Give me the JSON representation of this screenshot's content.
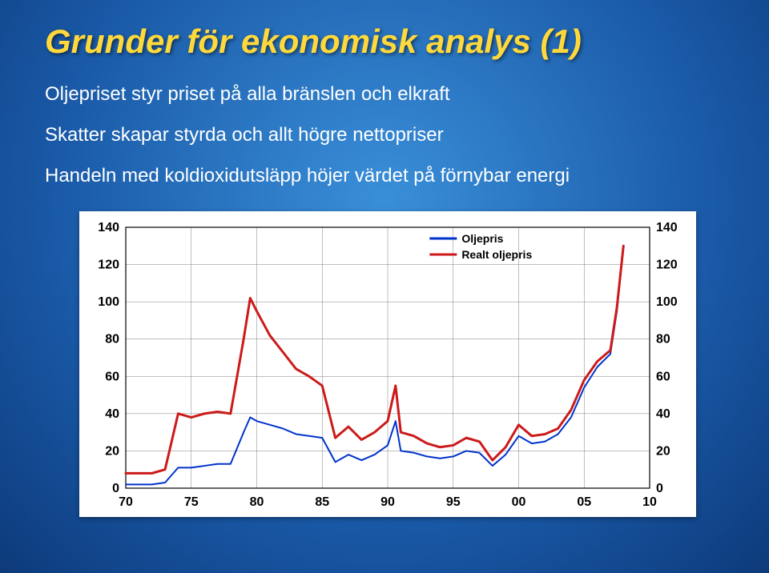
{
  "title": "Grunder för ekonomisk analys (1)",
  "bullets": [
    "Oljepriset styr priset på alla bränslen och elkraft",
    "Skatter skapar styrda och allt högre nettopriser",
    "Handeln med koldioxidutsläpp höjer värdet på förnybar energi"
  ],
  "chart": {
    "type": "line",
    "background_color": "#ffffff",
    "grid_color": "#808080",
    "border_color": "#000000",
    "tick_label_fontsize": 16,
    "tick_label_color": "#000000",
    "tick_label_weight": "bold",
    "legend": {
      "position": "top-right-inside",
      "fontsize": 14,
      "font_weight": "bold",
      "items": [
        {
          "label": "Oljepris",
          "color": "#0033cc"
        },
        {
          "label": "Realt oljepris",
          "color": "#cc1a1a"
        }
      ]
    },
    "x": {
      "lim": [
        1970,
        2010
      ],
      "ticks": [
        1970,
        1975,
        1980,
        1985,
        1990,
        1995,
        2000,
        2005,
        2010
      ],
      "tick_labels": [
        "70",
        "75",
        "80",
        "85",
        "90",
        "95",
        "00",
        "05",
        "10"
      ]
    },
    "y_left": {
      "lim": [
        0,
        140
      ],
      "ticks": [
        0,
        20,
        40,
        60,
        80,
        100,
        120,
        140
      ]
    },
    "y_right": {
      "lim": [
        0,
        140
      ],
      "ticks": [
        0,
        20,
        40,
        60,
        80,
        100,
        120,
        140
      ]
    },
    "series": [
      {
        "name": "Oljepris",
        "color": "#0033cc",
        "line_width": 2,
        "data": [
          [
            1970,
            2
          ],
          [
            1971,
            2
          ],
          [
            1972,
            2
          ],
          [
            1973,
            3
          ],
          [
            1974,
            11
          ],
          [
            1975,
            11
          ],
          [
            1976,
            12
          ],
          [
            1977,
            13
          ],
          [
            1978,
            13
          ],
          [
            1979,
            30
          ],
          [
            1979.5,
            38
          ],
          [
            1980,
            36
          ],
          [
            1981,
            34
          ],
          [
            1982,
            32
          ],
          [
            1983,
            29
          ],
          [
            1984,
            28
          ],
          [
            1985,
            27
          ],
          [
            1986,
            14
          ],
          [
            1987,
            18
          ],
          [
            1988,
            15
          ],
          [
            1989,
            18
          ],
          [
            1990,
            23
          ],
          [
            1990.6,
            36
          ],
          [
            1991,
            20
          ],
          [
            1992,
            19
          ],
          [
            1993,
            17
          ],
          [
            1994,
            16
          ],
          [
            1995,
            17
          ],
          [
            1996,
            20
          ],
          [
            1997,
            19
          ],
          [
            1998,
            12
          ],
          [
            1999,
            18
          ],
          [
            2000,
            28
          ],
          [
            2001,
            24
          ],
          [
            2002,
            25
          ],
          [
            2003,
            29
          ],
          [
            2004,
            38
          ],
          [
            2005,
            54
          ],
          [
            2006,
            65
          ],
          [
            2007,
            72
          ],
          [
            2007.5,
            95
          ],
          [
            2008,
            130
          ]
        ]
      },
      {
        "name": "Realt oljepris",
        "color": "#cc1a1a",
        "line_width": 3,
        "data": [
          [
            1970,
            8
          ],
          [
            1971,
            8
          ],
          [
            1972,
            8
          ],
          [
            1973,
            10
          ],
          [
            1974,
            40
          ],
          [
            1975,
            38
          ],
          [
            1976,
            40
          ],
          [
            1977,
            41
          ],
          [
            1978,
            40
          ],
          [
            1979,
            80
          ],
          [
            1979.5,
            102
          ],
          [
            1980,
            95
          ],
          [
            1981,
            82
          ],
          [
            1982,
            73
          ],
          [
            1983,
            64
          ],
          [
            1984,
            60
          ],
          [
            1985,
            55
          ],
          [
            1986,
            27
          ],
          [
            1987,
            33
          ],
          [
            1988,
            26
          ],
          [
            1989,
            30
          ],
          [
            1990,
            36
          ],
          [
            1990.6,
            55
          ],
          [
            1991,
            30
          ],
          [
            1992,
            28
          ],
          [
            1993,
            24
          ],
          [
            1994,
            22
          ],
          [
            1995,
            23
          ],
          [
            1996,
            27
          ],
          [
            1997,
            25
          ],
          [
            1998,
            15
          ],
          [
            1999,
            22
          ],
          [
            2000,
            34
          ],
          [
            2001,
            28
          ],
          [
            2002,
            29
          ],
          [
            2003,
            32
          ],
          [
            2004,
            42
          ],
          [
            2005,
            58
          ],
          [
            2006,
            68
          ],
          [
            2007,
            74
          ],
          [
            2007.5,
            97
          ],
          [
            2008,
            130
          ]
        ]
      }
    ]
  },
  "title_color": "#ffd93b",
  "title_fontsize": 42,
  "bullet_fontsize": 24,
  "bullet_color": "#ffffff"
}
